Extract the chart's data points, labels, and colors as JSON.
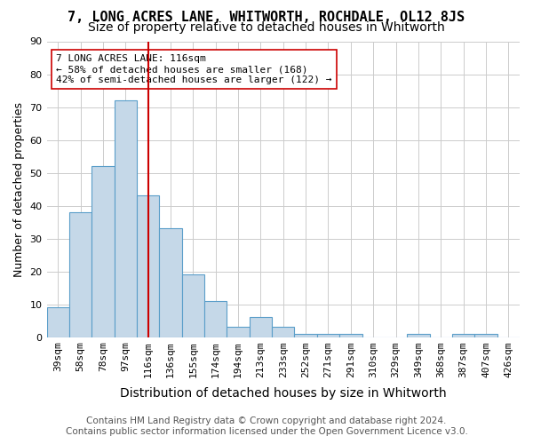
{
  "title": "7, LONG ACRES LANE, WHITWORTH, ROCHDALE, OL12 8JS",
  "subtitle": "Size of property relative to detached houses in Whitworth",
  "xlabel": "Distribution of detached houses by size in Whitworth",
  "ylabel": "Number of detached properties",
  "footer_line1": "Contains HM Land Registry data © Crown copyright and database right 2024.",
  "footer_line2": "Contains public sector information licensed under the Open Government Licence v3.0.",
  "bar_labels": [
    "39sqm",
    "58sqm",
    "78sqm",
    "97sqm",
    "116sqm",
    "136sqm",
    "155sqm",
    "174sqm",
    "194sqm",
    "213sqm",
    "233sqm",
    "252sqm",
    "271sqm",
    "291sqm",
    "310sqm",
    "329sqm",
    "349sqm",
    "368sqm",
    "387sqm",
    "407sqm",
    "426sqm"
  ],
  "bar_values": [
    9,
    38,
    52,
    72,
    43,
    33,
    19,
    11,
    3,
    6,
    3,
    1,
    1,
    1,
    0,
    0,
    1,
    0,
    1,
    1,
    0
  ],
  "bar_color": "#c5d8e8",
  "bar_edge_color": "#5a9ec9",
  "vline_x_index": 4,
  "vline_color": "#cc0000",
  "annotation_line1": "7 LONG ACRES LANE: 116sqm",
  "annotation_line2": "← 58% of detached houses are smaller (168)",
  "annotation_line3": "42% of semi-detached houses are larger (122) →",
  "annotation_box_color": "#ffffff",
  "annotation_box_edge_color": "#cc0000",
  "annotation_fontsize": 8.0,
  "ylim": [
    0,
    90
  ],
  "yticks": [
    0,
    10,
    20,
    30,
    40,
    50,
    60,
    70,
    80,
    90
  ],
  "title_fontsize": 11,
  "subtitle_fontsize": 10,
  "xlabel_fontsize": 10,
  "ylabel_fontsize": 9,
  "tick_fontsize": 8,
  "footer_fontsize": 7.5,
  "background_color": "#ffffff",
  "grid_color": "#cccccc"
}
